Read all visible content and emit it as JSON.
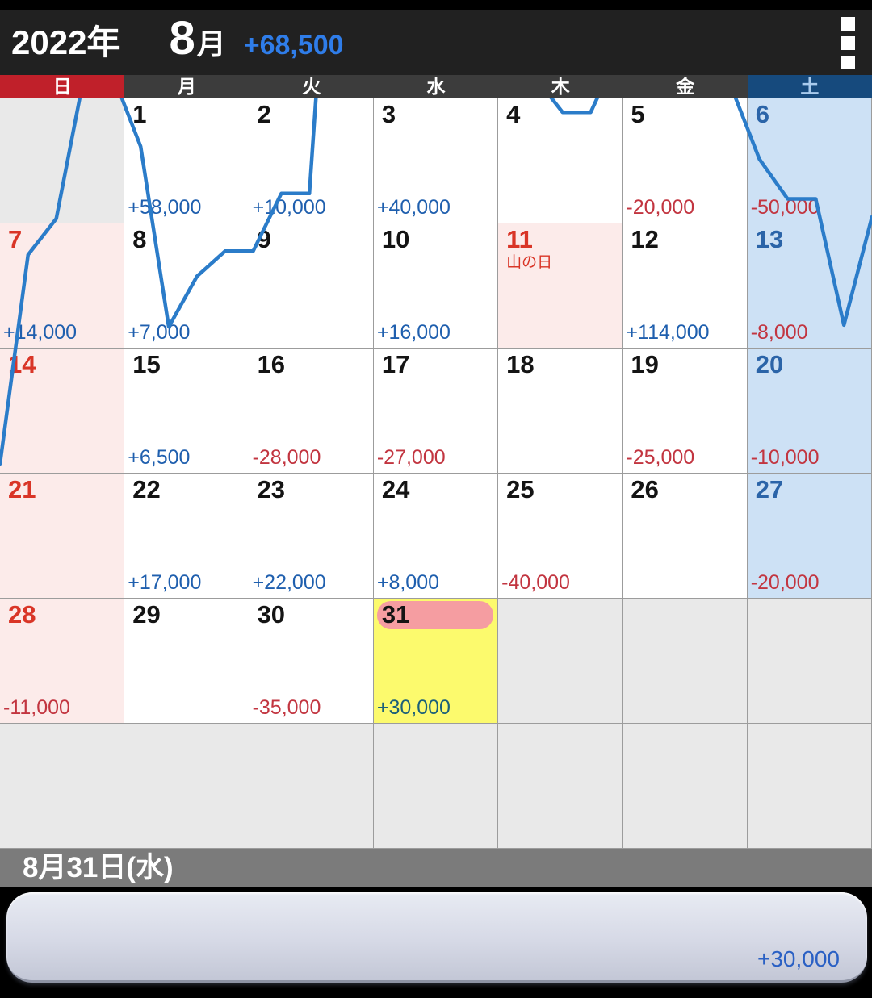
{
  "header": {
    "year": "2022年",
    "month_number": "8",
    "month_unit": "月",
    "month_total": "+68,500"
  },
  "weekdays": [
    {
      "label": "日"
    },
    {
      "label": "月"
    },
    {
      "label": "火"
    },
    {
      "label": "水"
    },
    {
      "label": "木"
    },
    {
      "label": "金"
    },
    {
      "label": "土"
    }
  ],
  "calendar": {
    "weeks": [
      [
        {
          "kind": "filler"
        },
        {
          "day": "1",
          "kind": "normal",
          "value": "+58,000",
          "value_sign": "pos"
        },
        {
          "day": "2",
          "kind": "normal",
          "value": "+10,000",
          "value_sign": "pos"
        },
        {
          "day": "3",
          "kind": "normal",
          "value": "+40,000",
          "value_sign": "pos"
        },
        {
          "day": "4",
          "kind": "normal"
        },
        {
          "day": "5",
          "kind": "normal",
          "value": "-20,000",
          "value_sign": "neg"
        },
        {
          "day": "6",
          "kind": "sat",
          "value": "-50,000",
          "value_sign": "neg"
        }
      ],
      [
        {
          "day": "7",
          "kind": "sun",
          "value": "+14,000",
          "value_sign": "pos"
        },
        {
          "day": "8",
          "kind": "normal",
          "value": "+7,000",
          "value_sign": "pos"
        },
        {
          "day": "9",
          "kind": "normal"
        },
        {
          "day": "10",
          "kind": "normal",
          "value": "+16,000",
          "value_sign": "pos"
        },
        {
          "day": "11",
          "kind": "holiday",
          "holiday_label": "山の日"
        },
        {
          "day": "12",
          "kind": "normal",
          "value": "+114,000",
          "value_sign": "pos"
        },
        {
          "day": "13",
          "kind": "sat",
          "value": "-8,000",
          "value_sign": "neg"
        }
      ],
      [
        {
          "day": "14",
          "kind": "sun"
        },
        {
          "day": "15",
          "kind": "normal",
          "value": "+6,500",
          "value_sign": "pos"
        },
        {
          "day": "16",
          "kind": "normal",
          "value": "-28,000",
          "value_sign": "neg"
        },
        {
          "day": "17",
          "kind": "normal",
          "value": "-27,000",
          "value_sign": "neg"
        },
        {
          "day": "18",
          "kind": "normal"
        },
        {
          "day": "19",
          "kind": "normal",
          "value": "-25,000",
          "value_sign": "neg"
        },
        {
          "day": "20",
          "kind": "sat",
          "value": "-10,000",
          "value_sign": "neg"
        }
      ],
      [
        {
          "day": "21",
          "kind": "sun"
        },
        {
          "day": "22",
          "kind": "normal",
          "value": "+17,000",
          "value_sign": "pos"
        },
        {
          "day": "23",
          "kind": "normal",
          "value": "+22,000",
          "value_sign": "pos"
        },
        {
          "day": "24",
          "kind": "normal",
          "value": "+8,000",
          "value_sign": "pos"
        },
        {
          "day": "25",
          "kind": "normal",
          "value": "-40,000",
          "value_sign": "neg"
        },
        {
          "day": "26",
          "kind": "normal"
        },
        {
          "day": "27",
          "kind": "sat",
          "value": "-20,000",
          "value_sign": "neg"
        }
      ],
      [
        {
          "day": "28",
          "kind": "sun",
          "value": "-11,000",
          "value_sign": "neg"
        },
        {
          "day": "29",
          "kind": "normal"
        },
        {
          "day": "30",
          "kind": "normal",
          "value": "-35,000",
          "value_sign": "neg"
        },
        {
          "day": "31",
          "kind": "selected",
          "value": "+30,000",
          "value_sign": "pos"
        },
        {
          "kind": "filler"
        },
        {
          "kind": "filler"
        },
        {
          "kind": "filler"
        }
      ],
      [
        {
          "kind": "filler"
        },
        {
          "kind": "filler"
        },
        {
          "kind": "filler"
        },
        {
          "kind": "filler"
        },
        {
          "kind": "filler"
        },
        {
          "kind": "filler"
        },
        {
          "kind": "filler"
        }
      ]
    ]
  },
  "chart_data": {
    "type": "line",
    "title": "Cumulative monthly balance overlaid on calendar grid",
    "legend_position": "none",
    "grid": false,
    "line_color": "#2b7cc9",
    "x": [
      0,
      1,
      2,
      3,
      4,
      5,
      6,
      7,
      8,
      9,
      10,
      11,
      12,
      13,
      14,
      15,
      16,
      17,
      18,
      19,
      20,
      21,
      22,
      23,
      24,
      25,
      26,
      27,
      28,
      29,
      30,
      31
    ],
    "daily_amounts": [
      58000,
      10000,
      40000,
      0,
      -20000,
      -50000,
      14000,
      7000,
      0,
      16000,
      0,
      114000,
      -8000,
      0,
      6500,
      -28000,
      -27000,
      0,
      -25000,
      -10000,
      0,
      17000,
      22000,
      8000,
      -40000,
      0,
      -20000,
      -11000,
      0,
      -35000,
      30000
    ],
    "cumulative": [
      0,
      58000,
      68000,
      108000,
      108000,
      88000,
      38000,
      52000,
      59000,
      59000,
      75000,
      75000,
      189000,
      181000,
      181000,
      187500,
      159500,
      132500,
      132500,
      107500,
      97500,
      97500,
      114500,
      136500,
      144500,
      104500,
      104500,
      84500,
      73500,
      73500,
      38500,
      68500
    ],
    "month_total": 68500
  },
  "selected_date_bar": {
    "label": "8月31日(水)"
  },
  "detail_panel": {
    "amount": "+30,000"
  }
}
